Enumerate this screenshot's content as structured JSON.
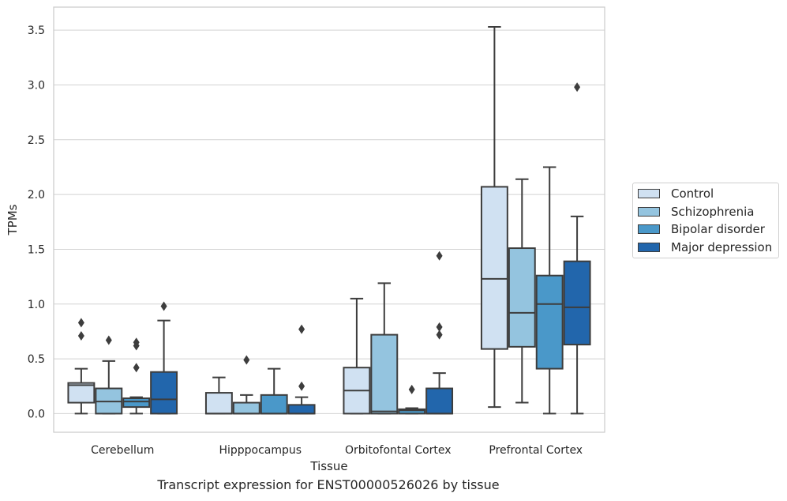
{
  "chart_data": {
    "type": "box",
    "xlabel": "Tissue",
    "ylabel": "TPMs",
    "caption": "Transcript expression for ENST00000526026 by tissue",
    "ylim": [
      -0.17,
      3.71
    ],
    "yticks": [
      0.0,
      0.5,
      1.0,
      1.5,
      2.0,
      2.5,
      3.0,
      3.5
    ],
    "ytick_labels": [
      "0.0",
      "0.5",
      "1.0",
      "1.5",
      "2.0",
      "2.5",
      "3.0",
      "3.5"
    ],
    "grid": "horizontal",
    "legend_position": "right",
    "categories": [
      "Cerebellum",
      "Hipppocampus",
      "Orbitofontal Cortex",
      "Prefrontal Cortex"
    ],
    "series": [
      {
        "name": "Control",
        "color": "#d0e1f2",
        "boxes": [
          {
            "whislo": 0.0,
            "q1": 0.1,
            "med": 0.26,
            "q3": 0.28,
            "whishi": 0.41,
            "fliers": [
              0.71,
              0.83
            ]
          },
          {
            "whislo": 0.0,
            "q1": 0.0,
            "med": 0.0,
            "q3": 0.19,
            "whishi": 0.33,
            "fliers": []
          },
          {
            "whislo": 0.0,
            "q1": 0.0,
            "med": 0.21,
            "q3": 0.42,
            "whishi": 1.05,
            "fliers": []
          },
          {
            "whislo": 0.06,
            "q1": 0.59,
            "med": 1.23,
            "q3": 2.07,
            "whishi": 3.53,
            "fliers": []
          }
        ]
      },
      {
        "name": "Schizophrenia",
        "color": "#94c4df",
        "boxes": [
          {
            "whislo": 0.0,
            "q1": 0.0,
            "med": 0.11,
            "q3": 0.23,
            "whishi": 0.48,
            "fliers": [
              0.67
            ]
          },
          {
            "whislo": 0.0,
            "q1": 0.0,
            "med": 0.0,
            "q3": 0.1,
            "whishi": 0.17,
            "fliers": [
              0.49
            ]
          },
          {
            "whislo": 0.0,
            "q1": 0.0,
            "med": 0.02,
            "q3": 0.72,
            "whishi": 1.19,
            "fliers": []
          },
          {
            "whislo": 0.1,
            "q1": 0.61,
            "med": 0.92,
            "q3": 1.51,
            "whishi": 2.14,
            "fliers": []
          }
        ]
      },
      {
        "name": "Bipolar disorder",
        "color": "#4a98c9",
        "boxes": [
          {
            "whislo": 0.0,
            "q1": 0.06,
            "med": 0.11,
            "q3": 0.14,
            "whishi": 0.15,
            "fliers": [
              0.42,
              0.62,
              0.65
            ]
          },
          {
            "whislo": 0.0,
            "q1": 0.0,
            "med": 0.0,
            "q3": 0.17,
            "whishi": 0.41,
            "fliers": []
          },
          {
            "whislo": 0.0,
            "q1": 0.0,
            "med": 0.03,
            "q3": 0.04,
            "whishi": 0.05,
            "fliers": [
              0.22
            ]
          },
          {
            "whislo": 0.0,
            "q1": 0.41,
            "med": 1.0,
            "q3": 1.26,
            "whishi": 2.25,
            "fliers": []
          }
        ]
      },
      {
        "name": "Major depression",
        "color": "#2266ac",
        "boxes": [
          {
            "whislo": 0.0,
            "q1": 0.0,
            "med": 0.13,
            "q3": 0.38,
            "whishi": 0.85,
            "fliers": [
              0.98
            ]
          },
          {
            "whislo": 0.0,
            "q1": 0.0,
            "med": 0.0,
            "q3": 0.08,
            "whishi": 0.15,
            "fliers": [
              0.25,
              0.77
            ]
          },
          {
            "whislo": 0.0,
            "q1": 0.0,
            "med": 0.0,
            "q3": 0.23,
            "whishi": 0.37,
            "fliers": [
              0.72,
              0.79,
              1.44
            ]
          },
          {
            "whislo": 0.0,
            "q1": 0.63,
            "med": 0.97,
            "q3": 1.39,
            "whishi": 1.8,
            "fliers": [
              2.98
            ]
          }
        ]
      }
    ]
  }
}
